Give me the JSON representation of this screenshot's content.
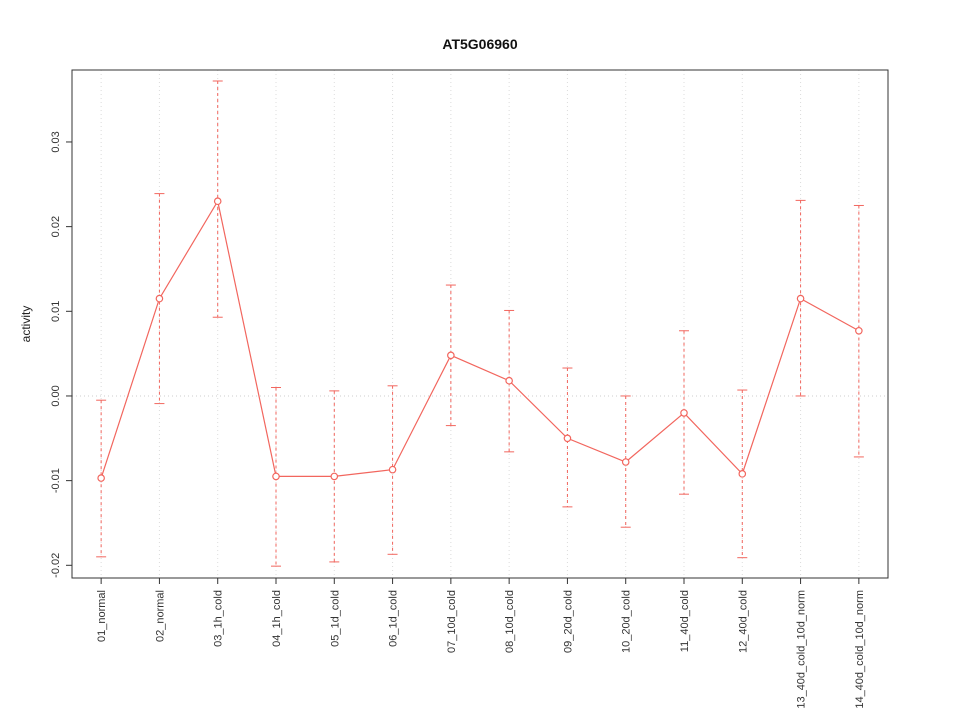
{
  "chart_data": {
    "type": "line",
    "title": "AT5G06960",
    "ylabel": "activity",
    "xlabel": "",
    "categories": [
      "01_normal",
      "02_normal",
      "03_1h_cold",
      "04_1h_cold",
      "05_1d_cold",
      "06_1d_cold",
      "07_10d_cold",
      "08_10d_cold",
      "09_20d_cold",
      "10_20d_cold",
      "11_40d_cold",
      "12_40d_cold",
      "13_40d_cold_10d_norm",
      "14_40d_cold_10d_norm"
    ],
    "values": [
      -0.0097,
      0.0115,
      0.023,
      -0.0095,
      -0.0095,
      -0.0087,
      0.0048,
      0.0018,
      -0.005,
      -0.0078,
      -0.002,
      -0.0092,
      0.0115,
      0.0077
    ],
    "error_low": [
      -0.019,
      -0.0009,
      0.0093,
      -0.0201,
      -0.0196,
      -0.0187,
      -0.0035,
      -0.0066,
      -0.0131,
      -0.0155,
      -0.0116,
      -0.0191,
      0.0,
      -0.0072
    ],
    "error_high": [
      -0.0005,
      0.0239,
      0.0372,
      0.001,
      0.0006,
      0.0012,
      0.0131,
      0.0101,
      0.0033,
      0.0,
      0.0077,
      0.0007,
      0.0231,
      0.0225
    ],
    "yticks": [
      -0.02,
      -0.01,
      0,
      0.01,
      0.02,
      0.03
    ],
    "ylim": [
      -0.0215,
      0.0385
    ],
    "grid": "vertical-dotted-plus-zero-line",
    "legend": "none",
    "colors": {
      "series": "#f2665e",
      "grid": "#dcdcdc",
      "zero_line": "#cccccc",
      "axis": "#333333"
    }
  }
}
